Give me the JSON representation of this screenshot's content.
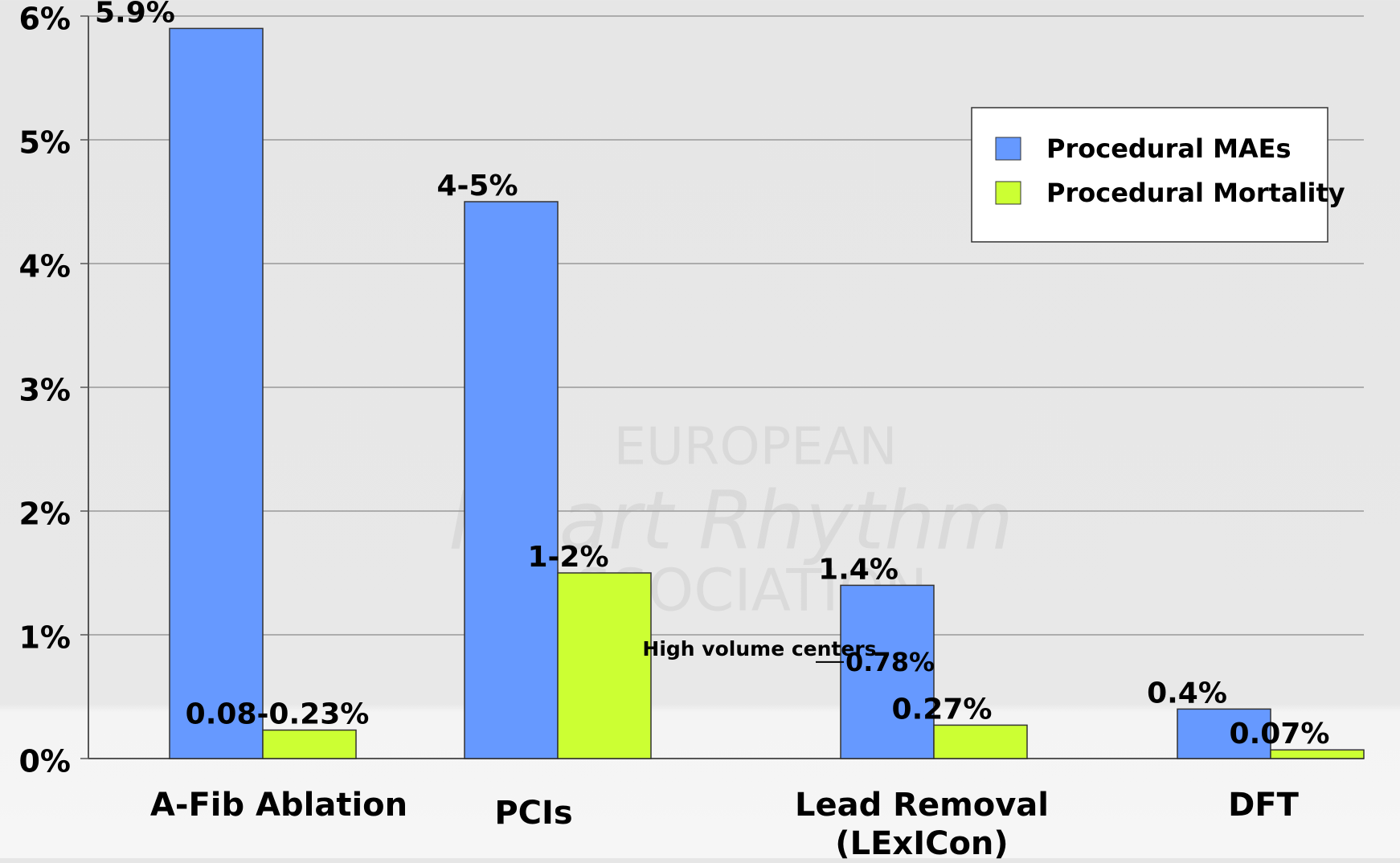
{
  "chart_data": {
    "type": "bar",
    "categories": [
      "A-Fib Ablation",
      "PCIs",
      "Lead Removal\n(LExICon)",
      "DFT"
    ],
    "series": [
      {
        "name": "Procedural MAEs",
        "color": "#6699ff",
        "values": [
          5.9,
          4.5,
          1.4,
          0.4
        ],
        "value_labels": [
          "5.9%",
          "4-5%",
          "1.4%",
          "0.4%"
        ]
      },
      {
        "name": "Procedural Mortality",
        "color": "#ccff33",
        "values": [
          0.23,
          1.5,
          0.27,
          0.07
        ],
        "value_labels": [
          "0.08-0.23%",
          "1-2%",
          "0.27%",
          "0.07%"
        ]
      }
    ],
    "ylim": [
      0,
      6
    ],
    "yticks": [
      {
        "value": 0,
        "label": "0%"
      },
      {
        "value": 1,
        "label": "1%"
      },
      {
        "value": 2,
        "label": "2%"
      },
      {
        "value": 3,
        "label": "3%"
      },
      {
        "value": 4,
        "label": "4%"
      },
      {
        "value": 5,
        "label": "5%"
      },
      {
        "value": 6,
        "label": "6%"
      }
    ],
    "grid": true,
    "legend": "upper right",
    "annotations": [
      {
        "text": "High volume centers",
        "value": 0.78,
        "label": "0.78%"
      }
    ],
    "watermark": [
      "EUROPEAN",
      "Heart Rhythm",
      "ASSOCIATION"
    ]
  }
}
